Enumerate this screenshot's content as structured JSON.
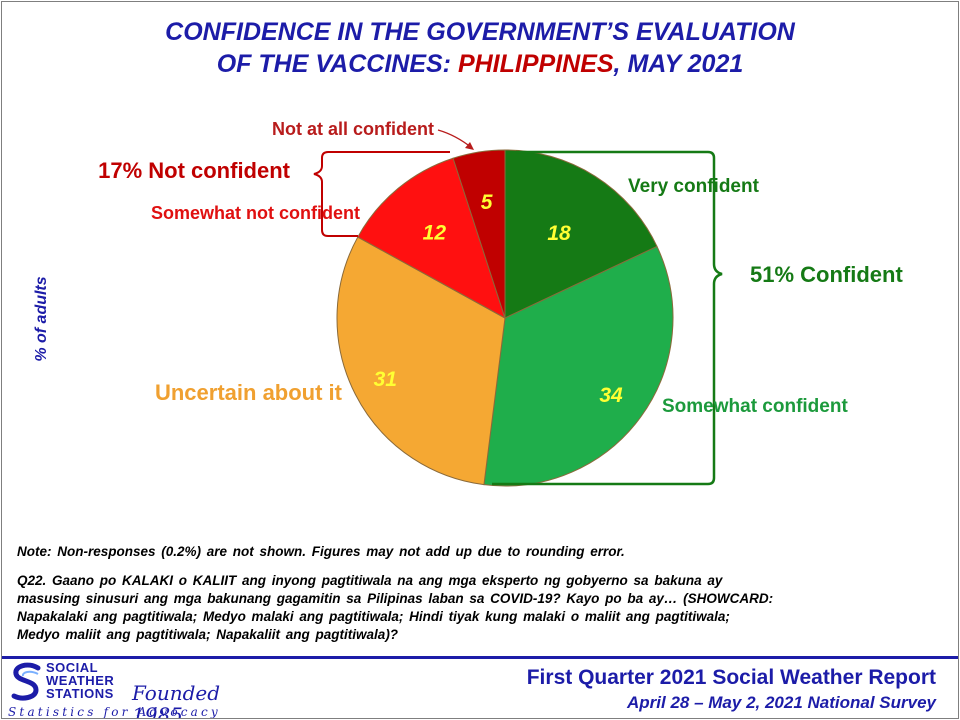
{
  "title": {
    "line1": "CONFIDENCE IN THE GOVERNMENT’S EVALUATION",
    "line2_part1": "OF THE VACCINES: ",
    "line2_highlight": "PHILIPPINES",
    "line2_part2": ", MAY 2021"
  },
  "y_axis_label": "% of adults",
  "chart_data": {
    "type": "pie",
    "start": "12 o'clock",
    "direction": "clockwise",
    "slices": [
      {
        "label": "Very confident",
        "value": 18,
        "color": "#157a15",
        "label_color": "#157a15"
      },
      {
        "label": "Somewhat confident",
        "value": 34,
        "color": "#1fae4b",
        "label_color": "#1c9a3c"
      },
      {
        "label": "Uncertain about it",
        "value": 31,
        "color": "#f5a833",
        "label_color": "#f0a030"
      },
      {
        "label": "Somewhat not confident",
        "value": 12,
        "color": "#ff1010",
        "label_color": "#e01010"
      },
      {
        "label": "Not at all confident",
        "value": 5,
        "color": "#c00000",
        "label_color": "#b81c1c"
      }
    ],
    "value_label_color": "#ffff33",
    "groups": [
      {
        "label": "51% Confident",
        "color": "#157a15"
      },
      {
        "label": "17% Not confident",
        "color": "#c00000"
      }
    ]
  },
  "note": "Note: Non-responses (0.2%) are not shown. Figures may not add up due to rounding error.",
  "question": [
    "Q22. Gaano po KALAKI o KALIIT ang inyong pagtitiwala na ang mga eksperto ng gobyerno sa bakuna ay",
    "masusing sinusuri ang mga bakunang gagamitin sa Pilipinas laban sa COVID-19? Kayo po ba ay… (SHOWCARD:",
    "Napakalaki ang pagtitiwala; Medyo malaki ang pagtitiwala; Hindi tiyak kung malaki o maliit ang pagtitiwala;",
    "Medyo maliit ang pagtitiwala; Napakaliit ang pagtitiwala)?"
  ],
  "footer": {
    "org_line1": "SOCIAL",
    "org_line2": "WEATHER",
    "org_line3": "STATIONS",
    "founded": "Founded 1985",
    "tagline": "Statistics for Advocacy",
    "report": "First Quarter 2021 Social Weather Report",
    "dates": "April 28 – May 2, 2021 National Survey"
  }
}
